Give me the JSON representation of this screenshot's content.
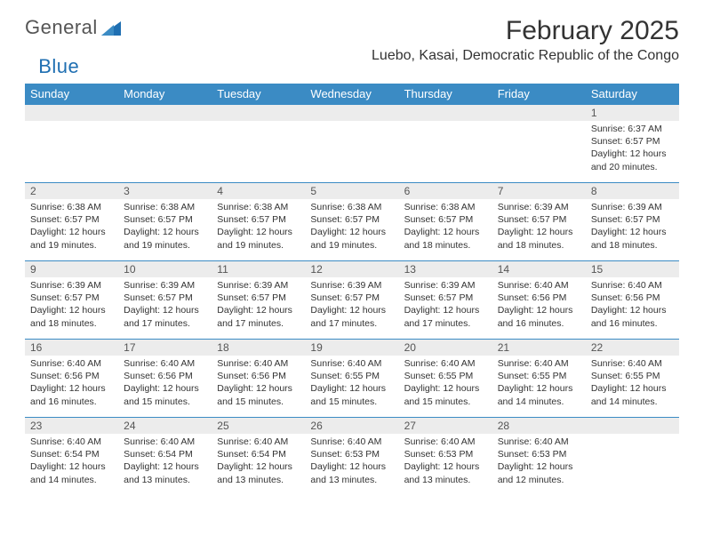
{
  "brand": {
    "part1": "General",
    "part2": "Blue"
  },
  "title": "February 2025",
  "location": "Luebo, Kasai, Democratic Republic of the Congo",
  "colors": {
    "header_bg": "#3b8bc4",
    "header_text": "#ffffff",
    "daynum_bg": "#ececec",
    "border": "#3b8bc4",
    "brand_blue": "#1f6fb2",
    "text": "#333333",
    "page_bg": "#ffffff"
  },
  "weekdays": [
    "Sunday",
    "Monday",
    "Tuesday",
    "Wednesday",
    "Thursday",
    "Friday",
    "Saturday"
  ],
  "weeks": [
    [
      null,
      null,
      null,
      null,
      null,
      null,
      {
        "n": "1",
        "sr": "Sunrise: 6:37 AM",
        "ss": "Sunset: 6:57 PM",
        "dl": "Daylight: 12 hours and 20 minutes."
      }
    ],
    [
      {
        "n": "2",
        "sr": "Sunrise: 6:38 AM",
        "ss": "Sunset: 6:57 PM",
        "dl": "Daylight: 12 hours and 19 minutes."
      },
      {
        "n": "3",
        "sr": "Sunrise: 6:38 AM",
        "ss": "Sunset: 6:57 PM",
        "dl": "Daylight: 12 hours and 19 minutes."
      },
      {
        "n": "4",
        "sr": "Sunrise: 6:38 AM",
        "ss": "Sunset: 6:57 PM",
        "dl": "Daylight: 12 hours and 19 minutes."
      },
      {
        "n": "5",
        "sr": "Sunrise: 6:38 AM",
        "ss": "Sunset: 6:57 PM",
        "dl": "Daylight: 12 hours and 19 minutes."
      },
      {
        "n": "6",
        "sr": "Sunrise: 6:38 AM",
        "ss": "Sunset: 6:57 PM",
        "dl": "Daylight: 12 hours and 18 minutes."
      },
      {
        "n": "7",
        "sr": "Sunrise: 6:39 AM",
        "ss": "Sunset: 6:57 PM",
        "dl": "Daylight: 12 hours and 18 minutes."
      },
      {
        "n": "8",
        "sr": "Sunrise: 6:39 AM",
        "ss": "Sunset: 6:57 PM",
        "dl": "Daylight: 12 hours and 18 minutes."
      }
    ],
    [
      {
        "n": "9",
        "sr": "Sunrise: 6:39 AM",
        "ss": "Sunset: 6:57 PM",
        "dl": "Daylight: 12 hours and 18 minutes."
      },
      {
        "n": "10",
        "sr": "Sunrise: 6:39 AM",
        "ss": "Sunset: 6:57 PM",
        "dl": "Daylight: 12 hours and 17 minutes."
      },
      {
        "n": "11",
        "sr": "Sunrise: 6:39 AM",
        "ss": "Sunset: 6:57 PM",
        "dl": "Daylight: 12 hours and 17 minutes."
      },
      {
        "n": "12",
        "sr": "Sunrise: 6:39 AM",
        "ss": "Sunset: 6:57 PM",
        "dl": "Daylight: 12 hours and 17 minutes."
      },
      {
        "n": "13",
        "sr": "Sunrise: 6:39 AM",
        "ss": "Sunset: 6:57 PM",
        "dl": "Daylight: 12 hours and 17 minutes."
      },
      {
        "n": "14",
        "sr": "Sunrise: 6:40 AM",
        "ss": "Sunset: 6:56 PM",
        "dl": "Daylight: 12 hours and 16 minutes."
      },
      {
        "n": "15",
        "sr": "Sunrise: 6:40 AM",
        "ss": "Sunset: 6:56 PM",
        "dl": "Daylight: 12 hours and 16 minutes."
      }
    ],
    [
      {
        "n": "16",
        "sr": "Sunrise: 6:40 AM",
        "ss": "Sunset: 6:56 PM",
        "dl": "Daylight: 12 hours and 16 minutes."
      },
      {
        "n": "17",
        "sr": "Sunrise: 6:40 AM",
        "ss": "Sunset: 6:56 PM",
        "dl": "Daylight: 12 hours and 15 minutes."
      },
      {
        "n": "18",
        "sr": "Sunrise: 6:40 AM",
        "ss": "Sunset: 6:56 PM",
        "dl": "Daylight: 12 hours and 15 minutes."
      },
      {
        "n": "19",
        "sr": "Sunrise: 6:40 AM",
        "ss": "Sunset: 6:55 PM",
        "dl": "Daylight: 12 hours and 15 minutes."
      },
      {
        "n": "20",
        "sr": "Sunrise: 6:40 AM",
        "ss": "Sunset: 6:55 PM",
        "dl": "Daylight: 12 hours and 15 minutes."
      },
      {
        "n": "21",
        "sr": "Sunrise: 6:40 AM",
        "ss": "Sunset: 6:55 PM",
        "dl": "Daylight: 12 hours and 14 minutes."
      },
      {
        "n": "22",
        "sr": "Sunrise: 6:40 AM",
        "ss": "Sunset: 6:55 PM",
        "dl": "Daylight: 12 hours and 14 minutes."
      }
    ],
    [
      {
        "n": "23",
        "sr": "Sunrise: 6:40 AM",
        "ss": "Sunset: 6:54 PM",
        "dl": "Daylight: 12 hours and 14 minutes."
      },
      {
        "n": "24",
        "sr": "Sunrise: 6:40 AM",
        "ss": "Sunset: 6:54 PM",
        "dl": "Daylight: 12 hours and 13 minutes."
      },
      {
        "n": "25",
        "sr": "Sunrise: 6:40 AM",
        "ss": "Sunset: 6:54 PM",
        "dl": "Daylight: 12 hours and 13 minutes."
      },
      {
        "n": "26",
        "sr": "Sunrise: 6:40 AM",
        "ss": "Sunset: 6:53 PM",
        "dl": "Daylight: 12 hours and 13 minutes."
      },
      {
        "n": "27",
        "sr": "Sunrise: 6:40 AM",
        "ss": "Sunset: 6:53 PM",
        "dl": "Daylight: 12 hours and 13 minutes."
      },
      {
        "n": "28",
        "sr": "Sunrise: 6:40 AM",
        "ss": "Sunset: 6:53 PM",
        "dl": "Daylight: 12 hours and 12 minutes."
      },
      null
    ]
  ]
}
